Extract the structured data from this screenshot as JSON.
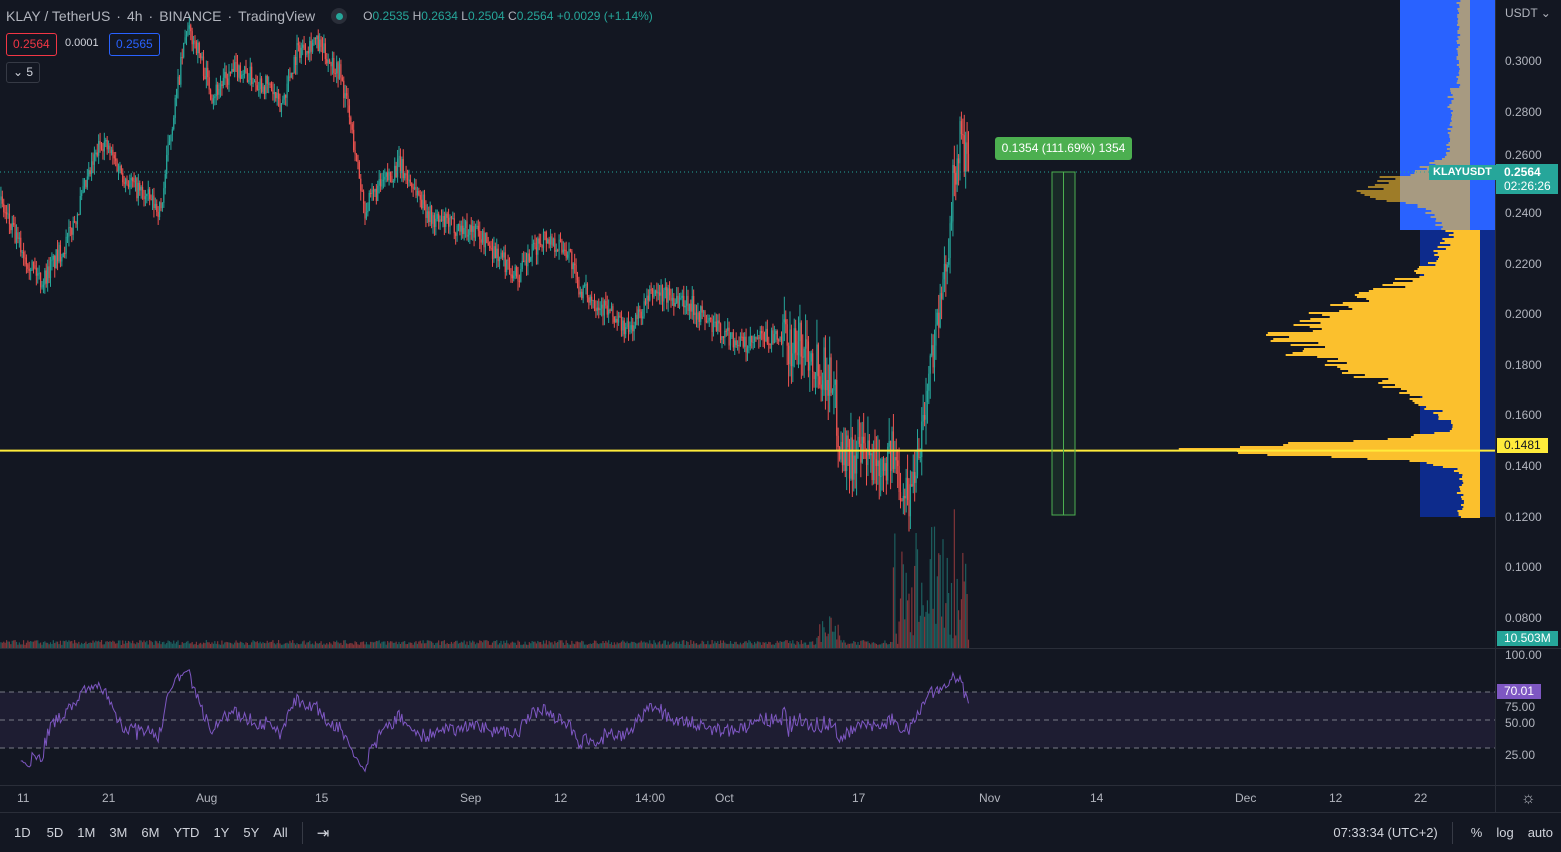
{
  "header": {
    "symbol": "KLAY / TetherUS",
    "interval": "4h",
    "exchange": "BINANCE",
    "source": "TradingView",
    "ohlc": {
      "o_label": "O",
      "o": "0.2535",
      "h_label": "H",
      "h": "0.2634",
      "l_label": "L",
      "l": "0.2504",
      "c_label": "C",
      "c": "0.2564",
      "change": "+0.0029 (+1.14%)"
    }
  },
  "trade": {
    "sell": "0.2564",
    "spread": "0.0001",
    "buy": "0.2565"
  },
  "indicators_toggle": "5",
  "price_axis": {
    "currency": "USDT",
    "ticks": [
      "0.3000",
      "0.2800",
      "0.2600",
      "0.2400",
      "0.2200",
      "0.2000",
      "0.1800",
      "0.1600",
      "0.1400",
      "0.1200",
      "0.1000",
      "0.0800"
    ],
    "tick_values": [
      0.3,
      0.28,
      0.26,
      0.24,
      0.22,
      0.2,
      0.18,
      0.16,
      0.14,
      0.12,
      0.1,
      0.08
    ],
    "last_symbol": "KLAYUSDT",
    "last_price": "0.2564",
    "countdown": "02:26:26",
    "hline_price": "0.1481",
    "volume_label": "10.503M"
  },
  "rsi_axis": {
    "ticks": [
      "100.00",
      "75.00",
      "50.00",
      "25.00"
    ],
    "last": "70.01"
  },
  "time_axis": {
    "ticks": [
      "11",
      "21",
      "Aug",
      "15",
      "Sep",
      "12",
      "14:00",
      "Oct",
      "17",
      "Nov",
      "14",
      "Dec",
      "12",
      "22"
    ]
  },
  "measure": {
    "label": "0.1354 (111.69%) 1354",
    "from": 0.121,
    "to": 0.2564
  },
  "toolbar": {
    "ranges": [
      "1D",
      "5D",
      "1M",
      "3M",
      "6M",
      "YTD",
      "1Y",
      "5Y",
      "All"
    ],
    "clock": "07:33:34 (UTC+2)",
    "percent": "%",
    "log": "log",
    "auto": "auto"
  },
  "colors": {
    "up": "#26a69a",
    "down": "#ef5350",
    "hline": "#ffeb3b",
    "rsi": "#7e57c2",
    "measure": "#4caf50",
    "profile_up": "#fbc02d",
    "profile_va": "#2962ff"
  },
  "chart_data": {
    "type": "candlestick",
    "interval": "4h",
    "ylim": [
      0.07,
      0.33
    ],
    "price_path": [
      [
        "Jul 8",
        0.245
      ],
      [
        "Jul 10",
        0.229
      ],
      [
        "Jul 13",
        0.213
      ],
      [
        "Jul 16",
        0.229
      ],
      [
        "Jul 20",
        0.269
      ],
      [
        "Jul 23",
        0.253
      ],
      [
        "Jul 27",
        0.241
      ],
      [
        "Jul 28",
        0.269
      ],
      [
        "Jul 30",
        0.312
      ],
      [
        "Jul 31",
        0.308
      ],
      [
        "Aug 2",
        0.287
      ],
      [
        "Aug 5",
        0.297
      ],
      [
        "Aug 9",
        0.289
      ],
      [
        "Aug 10",
        0.281
      ],
      [
        "Aug 12",
        0.304
      ],
      [
        "Aug 14",
        0.308
      ],
      [
        "Aug 17",
        0.296
      ],
      [
        "Aug 18",
        0.281
      ],
      [
        "Aug 20",
        0.241
      ],
      [
        "Aug 21",
        0.247
      ],
      [
        "Aug 24",
        0.259
      ],
      [
        "Aug 26",
        0.249
      ],
      [
        "Aug 28",
        0.237
      ],
      [
        "Sep 2",
        0.233
      ],
      [
        "Sep 7",
        0.215
      ],
      [
        "Sep 10",
        0.231
      ],
      [
        "Sep 13",
        0.225
      ],
      [
        "Sep 14",
        0.211
      ],
      [
        "Sep 17",
        0.203
      ],
      [
        "Sep 20",
        0.193
      ],
      [
        "Sep 23",
        0.209
      ],
      [
        "Sep 27",
        0.205
      ],
      [
        "Sep 30",
        0.195
      ],
      [
        "Oct 4",
        0.187
      ],
      [
        "Oct 6",
        0.191
      ],
      [
        "Oct 11",
        0.187
      ],
      [
        "Oct 14",
        0.174
      ],
      [
        "Oct 15",
        0.146
      ],
      [
        "Oct 18",
        0.142
      ],
      [
        "Oct 21",
        0.144
      ],
      [
        "Oct 23",
        0.127
      ],
      [
        "Oct 24",
        0.146
      ],
      [
        "Oct 25",
        0.166
      ],
      [
        "Oct 26",
        0.193
      ],
      [
        "Oct 27",
        0.206
      ],
      [
        "Oct 28",
        0.245
      ],
      [
        "Oct 29",
        0.269
      ],
      [
        "Oct 30",
        0.2564
      ]
    ],
    "hline": 0.1481,
    "rsi_levels": [
      70,
      50,
      30
    ]
  }
}
